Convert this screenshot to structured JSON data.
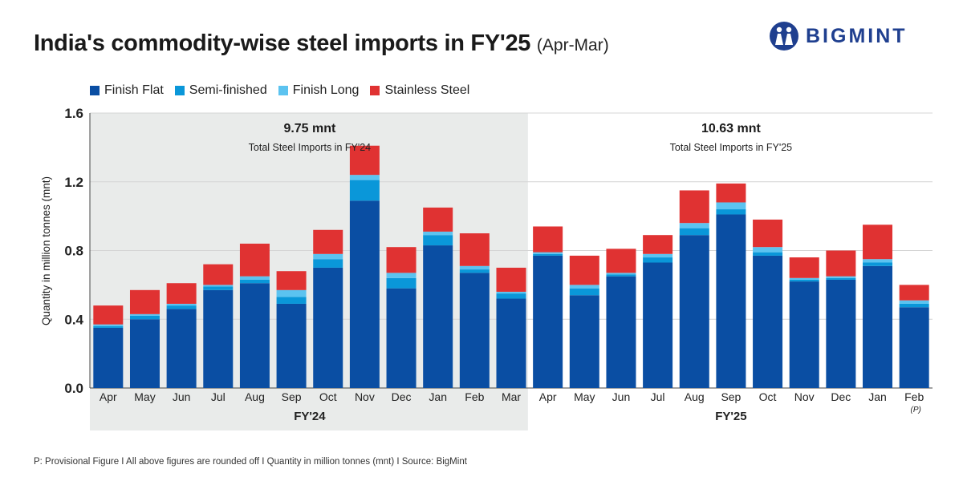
{
  "title": "India's commodity-wise steel imports in FY'25",
  "subtitle": "(Apr-Mar)",
  "brand": "BIGMINT",
  "footnote": "P: Provisional Figure  I  All above figures are rounded off  I  Quantity in million tonnes (mnt)  I  Source: BigMint",
  "colors": {
    "finish_flat": "#0a4ea3",
    "semi_finished": "#0a97d9",
    "finish_long": "#5cc3f0",
    "stainless_steel": "#e03232",
    "fy24_bg": "#e9ebea"
  },
  "chart_data": {
    "type": "bar",
    "stacked": true,
    "title": "India's commodity-wise steel imports in FY'25 (Apr-Mar)",
    "xlabel": "",
    "ylabel": "Quantity in million tonnes (mnt)",
    "ylim": [
      0,
      1.6
    ],
    "yticks": [
      "0.0",
      "0.4",
      "0.8",
      "1.2",
      "1.6"
    ],
    "grid": true,
    "legend_position": "top-left",
    "categories": [
      "Apr",
      "May",
      "Jun",
      "Jul",
      "Aug",
      "Sep",
      "Oct",
      "Nov",
      "Dec",
      "Jan",
      "Feb",
      "Mar",
      "Apr",
      "May",
      "Jun",
      "Jul",
      "Aug",
      "Sep",
      "Oct",
      "Nov",
      "Dec",
      "Jan",
      "Feb"
    ],
    "category_notes": {
      "22": "(P)"
    },
    "groups": [
      {
        "label": "FY'24",
        "start": 0,
        "end": 11,
        "total_value": "9.75 mnt",
        "total_label": "Total Steel Imports in FY'24"
      },
      {
        "label": "FY'25",
        "start": 12,
        "end": 22,
        "total_value": "10.63 mnt",
        "total_label": "Total Steel Imports in FY'25"
      }
    ],
    "series": [
      {
        "name": "Finish Flat",
        "color_key": "finish_flat",
        "values": [
          0.35,
          0.4,
          0.46,
          0.57,
          0.61,
          0.49,
          0.7,
          1.09,
          0.58,
          0.83,
          0.67,
          0.52,
          0.77,
          0.54,
          0.65,
          0.73,
          0.89,
          1.01,
          0.77,
          0.62,
          0.63,
          0.71,
          0.47
        ]
      },
      {
        "name": "Semi-finished",
        "color_key": "semi_finished",
        "values": [
          0.01,
          0.02,
          0.02,
          0.02,
          0.02,
          0.04,
          0.05,
          0.12,
          0.06,
          0.06,
          0.02,
          0.03,
          0.01,
          0.04,
          0.01,
          0.03,
          0.04,
          0.03,
          0.02,
          0.01,
          0.01,
          0.02,
          0.02
        ]
      },
      {
        "name": "Finish Long",
        "color_key": "finish_long",
        "values": [
          0.01,
          0.01,
          0.01,
          0.01,
          0.02,
          0.04,
          0.03,
          0.03,
          0.03,
          0.02,
          0.02,
          0.01,
          0.01,
          0.02,
          0.01,
          0.02,
          0.03,
          0.04,
          0.03,
          0.01,
          0.01,
          0.02,
          0.02
        ]
      },
      {
        "name": "Stainless Steel",
        "color_key": "stainless_steel",
        "values": [
          0.11,
          0.14,
          0.12,
          0.12,
          0.19,
          0.11,
          0.14,
          0.17,
          0.15,
          0.14,
          0.19,
          0.14,
          0.15,
          0.17,
          0.14,
          0.11,
          0.19,
          0.11,
          0.16,
          0.12,
          0.15,
          0.2,
          0.09
        ]
      }
    ]
  }
}
